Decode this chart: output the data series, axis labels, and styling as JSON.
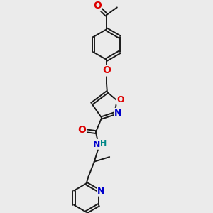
{
  "bg_color": "#ebebeb",
  "bond_color": "#1a1a1a",
  "atom_colors": {
    "O": "#dd0000",
    "N": "#0000cc",
    "H": "#008888",
    "C": "#1a1a1a"
  },
  "font_size": 8,
  "line_width": 1.4,
  "fig_size": [
    3.0,
    3.0
  ],
  "dpi": 100,
  "xlim": [
    0,
    10
  ],
  "ylim": [
    0,
    10
  ]
}
